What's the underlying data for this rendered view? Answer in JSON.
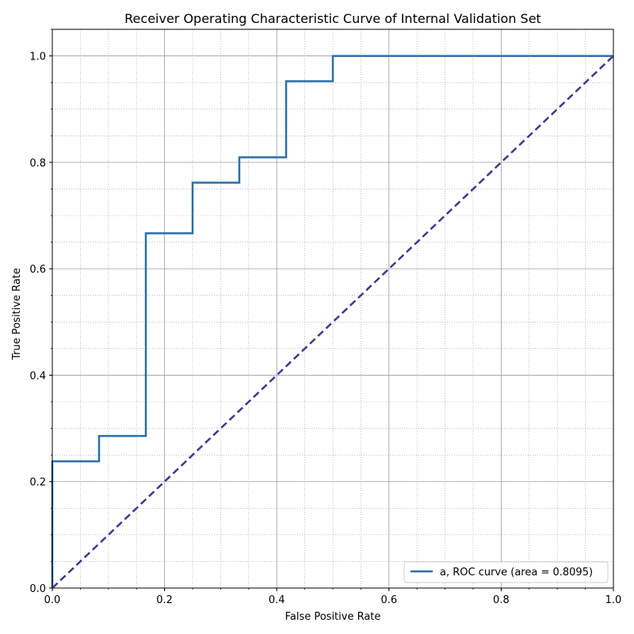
{
  "chart_data": {
    "type": "line",
    "title": "Receiver Operating Characteristic Curve of Internal Validation Set",
    "xlabel": "False Positive Rate",
    "ylabel": "True Positive Rate",
    "xlim": [
      0.0,
      1.0
    ],
    "ylim": [
      0.0,
      1.05
    ],
    "xticks": [
      0.0,
      0.2,
      0.4,
      0.6,
      0.8,
      1.0
    ],
    "yticks": [
      0.0,
      0.2,
      0.4,
      0.6,
      0.8,
      1.0
    ],
    "xtick_labels": [
      "0.0",
      "0.2",
      "0.4",
      "0.6",
      "0.8",
      "1.0"
    ],
    "ytick_labels": [
      "0.0",
      "0.2",
      "0.4",
      "0.6",
      "0.8",
      "1.0"
    ],
    "grid": true,
    "minor_grid": true,
    "legend_position": "lower-right",
    "series": [
      {
        "name": "a, ROC curve (area = 0.8095)",
        "color": "#2a6fa8",
        "style": "step",
        "x": [
          0.0,
          0.0,
          0.0833,
          0.0833,
          0.1667,
          0.1667,
          0.25,
          0.25,
          0.3333,
          0.3333,
          0.4167,
          0.4167,
          0.5,
          0.5,
          1.0
        ],
        "y": [
          0.0,
          0.2381,
          0.2381,
          0.2857,
          0.2857,
          0.6667,
          0.6667,
          0.7619,
          0.7619,
          0.8095,
          0.8095,
          0.9524,
          0.9524,
          1.0,
          1.0
        ]
      }
    ],
    "reference_line": {
      "color": "#3b3a8f",
      "style": "dashed",
      "x": [
        0.0,
        1.0
      ],
      "y": [
        0.0,
        1.0
      ]
    }
  }
}
